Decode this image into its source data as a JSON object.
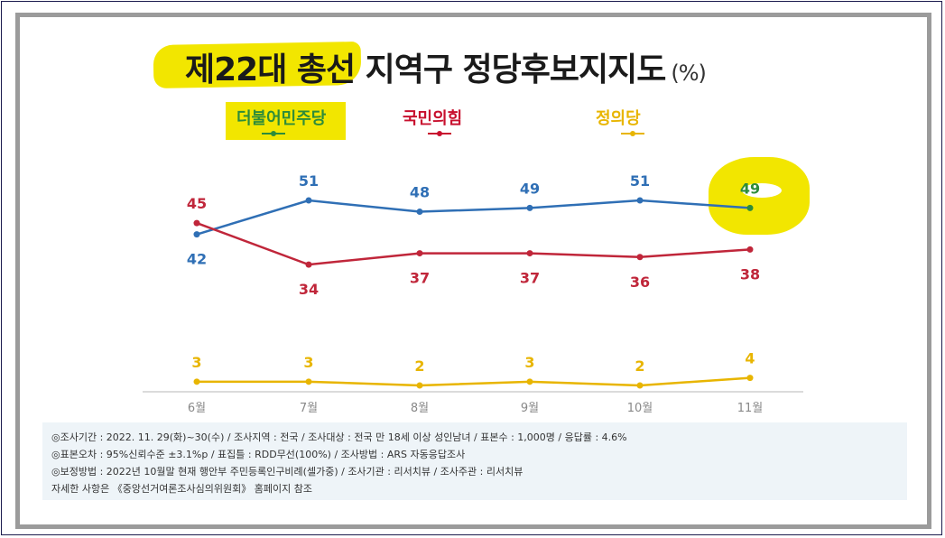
{
  "title": "제22대 총선 지역구 정당후보지지도",
  "title_unit": "(%)",
  "legend": [
    {
      "label": "더불어민주당",
      "color": "#2d8c3a"
    },
    {
      "label": "국민의힘",
      "color": "#c8102e"
    },
    {
      "label": "정의당",
      "color": "#e8b500"
    }
  ],
  "notes": [
    "◎조사기간 : 2022. 11. 29(화)~30(수) / 조사지역 : 전국 / 조사대상 : 전국 만 18세 이상 성인남녀 / 표본수 : 1,000명 / 응답률 : 4.6%",
    "◎표본오차 : 95%신뢰수준 ±3.1%p / 표집틀 : RDD무선(100%) / 조사방법 : ARS 자동응답조사",
    "◎보정방법 : 2022년 10월말 현재 행안부 주민등록인구비례(셀가중) / 조사기관 : 리서치뷰 / 조사주관 : 리서치뷰",
    "자세한 사항은 《중앙선거여론조사심의위원회》 홈페이지 참조"
  ],
  "chart_data": {
    "type": "line",
    "categories": [
      "6월",
      "7월",
      "8월",
      "9월",
      "10월",
      "11월"
    ],
    "series": [
      {
        "name": "더불어민주당",
        "values": [
          42,
          51,
          48,
          49,
          51,
          49
        ],
        "color": "#2f6fb5",
        "last_point_color": "#2d8c3a"
      },
      {
        "name": "국민의힘",
        "values": [
          45,
          34,
          37,
          37,
          36,
          38
        ],
        "color": "#c0263a"
      },
      {
        "name": "정의당",
        "values": [
          3,
          3,
          2,
          3,
          2,
          4
        ],
        "color": "#e8b500"
      }
    ],
    "ylim": [
      0,
      60
    ],
    "grid": false,
    "legend_position": "top"
  }
}
